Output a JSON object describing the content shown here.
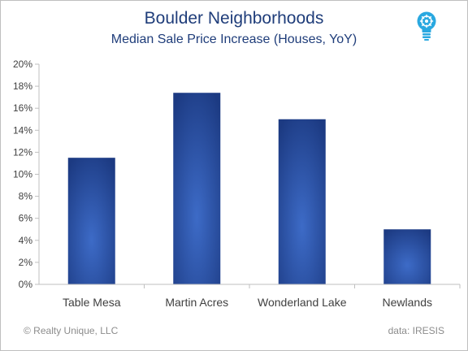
{
  "chart_data": {
    "type": "bar",
    "title": "Boulder Neighborhoods",
    "subtitle": "Median Sale Price Increase (Houses, YoY)",
    "categories": [
      "Table Mesa",
      "Martin Acres",
      "Wonderland Lake",
      "Newlands"
    ],
    "values": [
      11.5,
      17.4,
      15.0,
      5.0
    ],
    "ylim": [
      0,
      20
    ],
    "yticks": [
      0,
      2,
      4,
      6,
      8,
      10,
      12,
      14,
      16,
      18,
      20
    ],
    "ytick_format": "percent",
    "grid": false,
    "legend": "none",
    "colors": {
      "bar_center": "#3d6bc7",
      "bar_edge": "#1c3a82",
      "title": "#1f3d7a",
      "axis": "#bfbfbf",
      "tick_label": "#404040"
    }
  },
  "footer": {
    "credit": "© Realty Unique, LLC",
    "source": "data: IRESIS"
  },
  "logo": {
    "icon": "lightbulb-icon",
    "color": "#29a8e0"
  }
}
